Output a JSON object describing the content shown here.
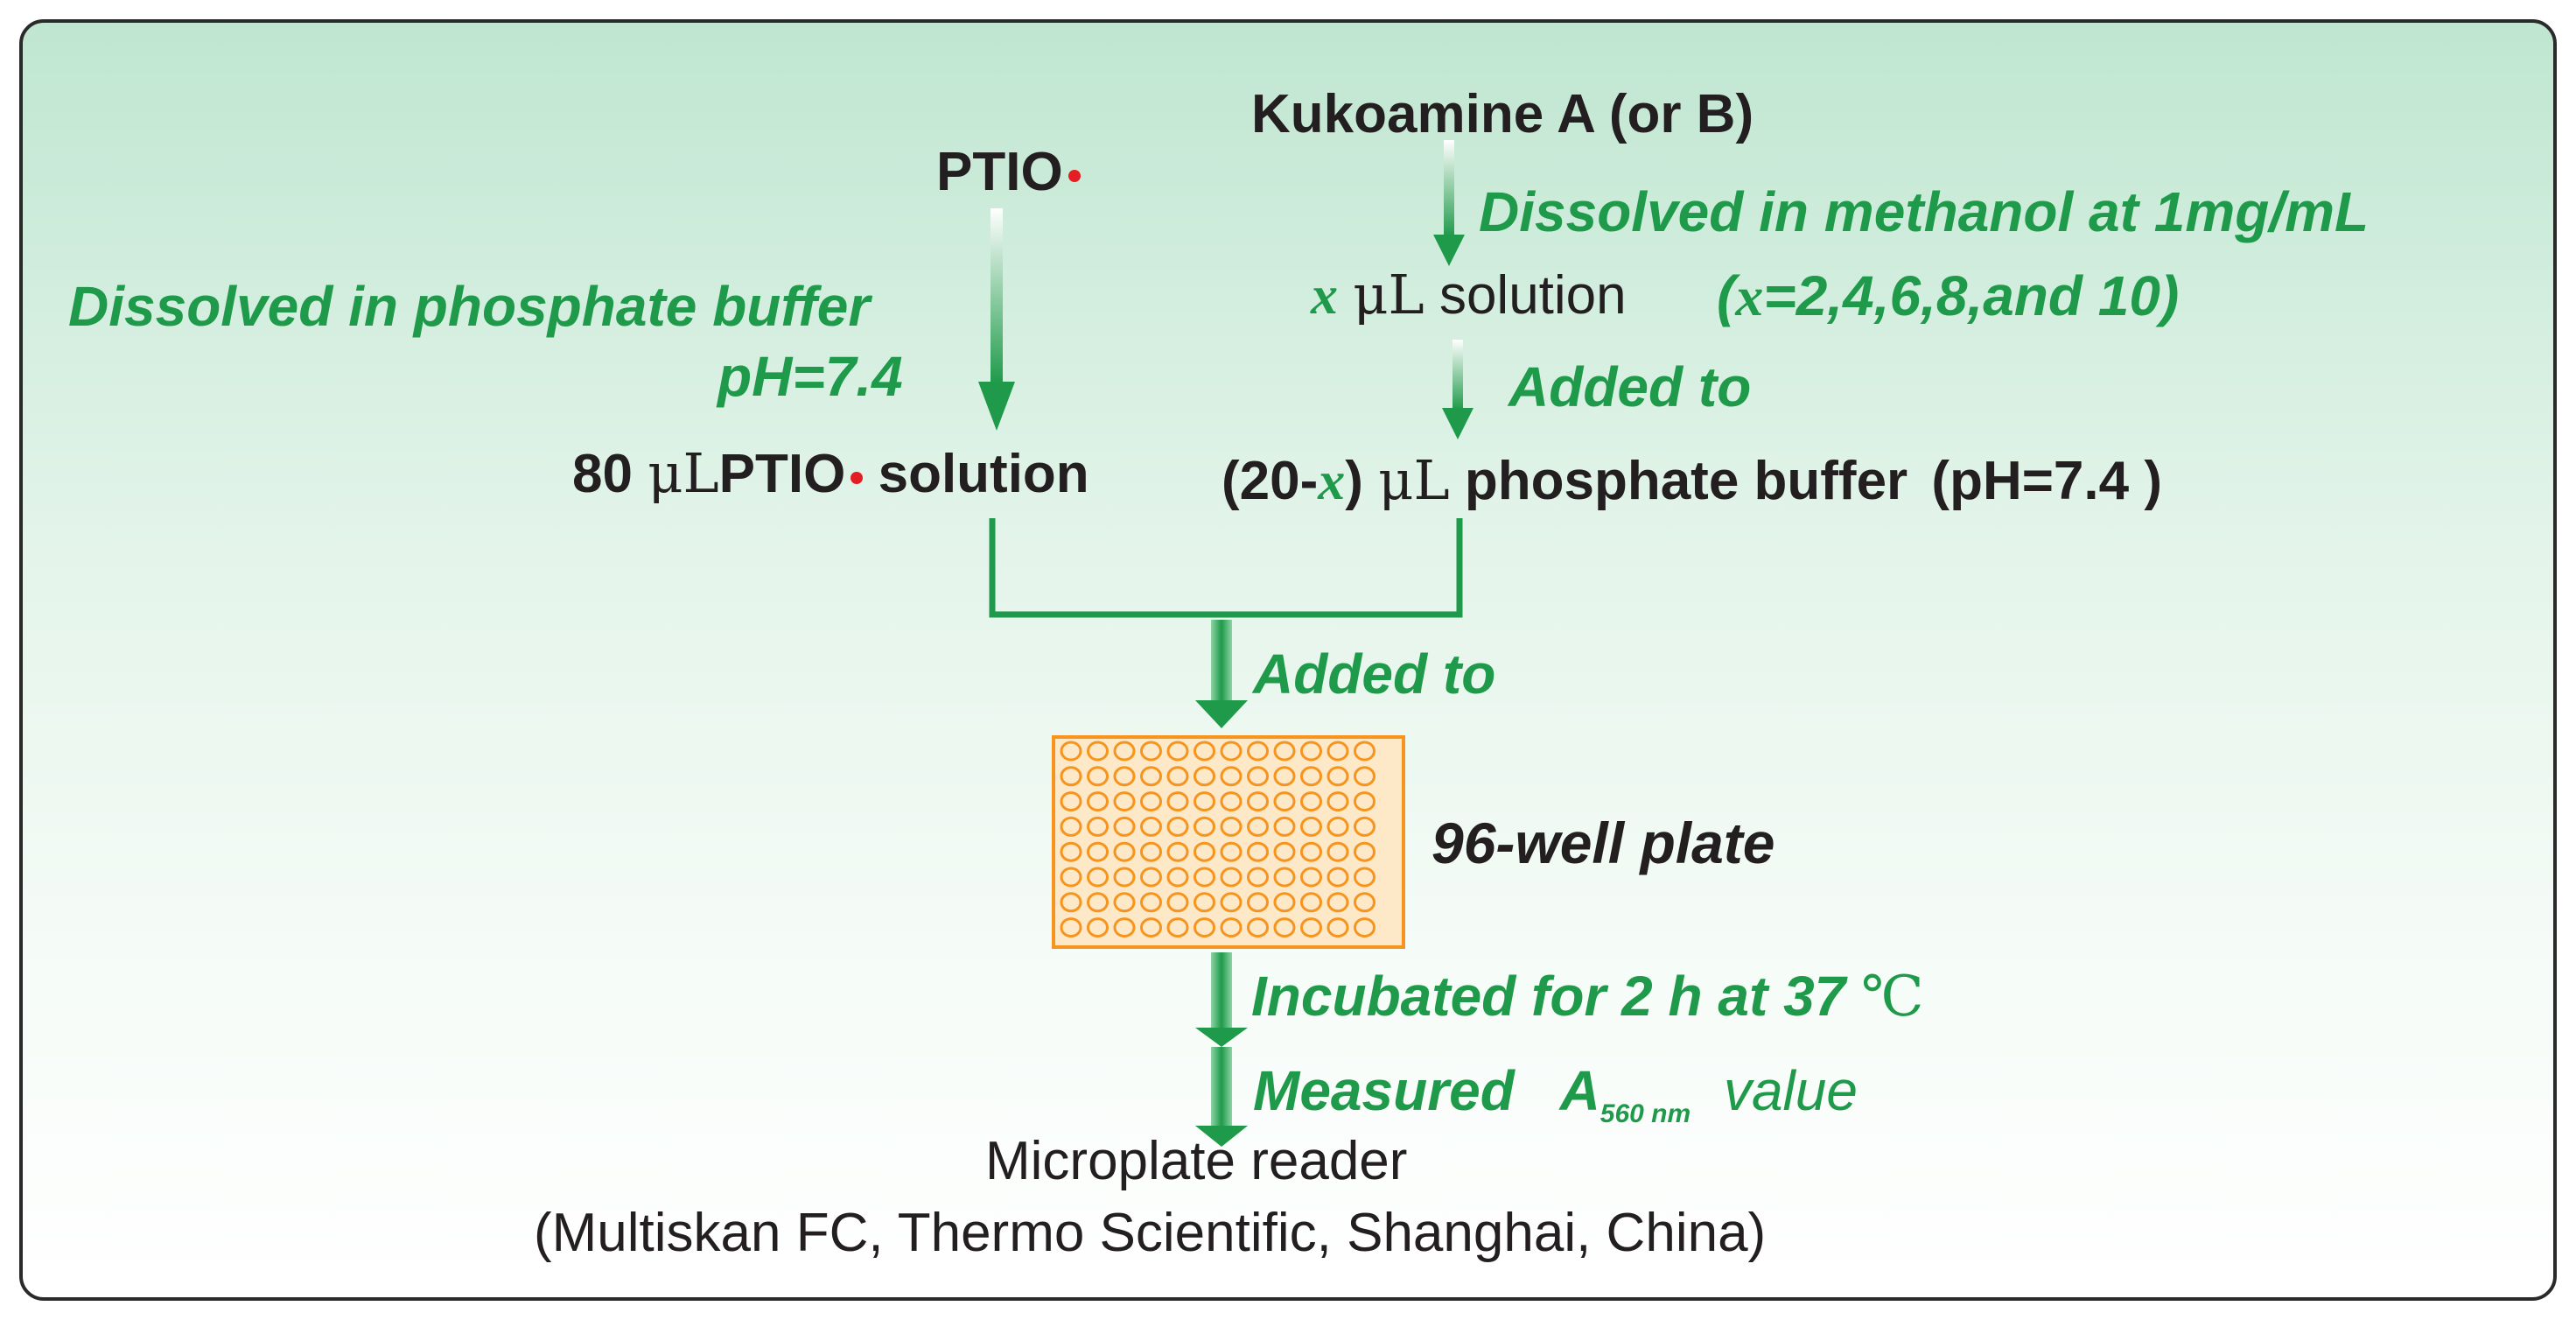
{
  "colors": {
    "accent_green": "#1f9a4a",
    "text_black": "#231f20",
    "radical_dot": "#e31e24",
    "plate_orange": "#f7941d",
    "border": "#2a2a2a"
  },
  "left": {
    "reagent": "PTIO",
    "step1_line1": "Dissolved in phosphate buffer",
    "step1_line2": "pH=7.4",
    "sol_amount": "80",
    "sol_unit": "μL",
    "sol_reagent": "PTIO",
    "sol_word": "solution"
  },
  "right": {
    "reagent": "Kukoamine A (or B)",
    "step1": "Dissolved in methanol at 1mg/mL",
    "sol_var": "x",
    "sol_unit": "μL",
    "sol_word": "solution",
    "cond_open": "(",
    "cond_var": "x",
    "cond_rest": "=2,4,6,8,and 10)",
    "step2": "Added to",
    "buf_open": "(20-",
    "buf_var": "x",
    "buf_close": ")",
    "buf_unit": "μL",
    "buf_text": "phosphate buffer",
    "buf_ph": "(pH=7.4 )"
  },
  "merge_step": "Added to",
  "plate": {
    "label": "96-well plate",
    "rows": 8,
    "cols": 12
  },
  "incubate": {
    "text": "Incubated for 2 h at 37",
    "unit": "℃"
  },
  "measure": {
    "word": "Measured",
    "a": "A",
    "sub": "560 nm",
    "value": "value"
  },
  "reader": {
    "line1": "Microplate reader",
    "line2": "(Multiskan FC, Thermo Scientific, Shanghai, China)"
  }
}
